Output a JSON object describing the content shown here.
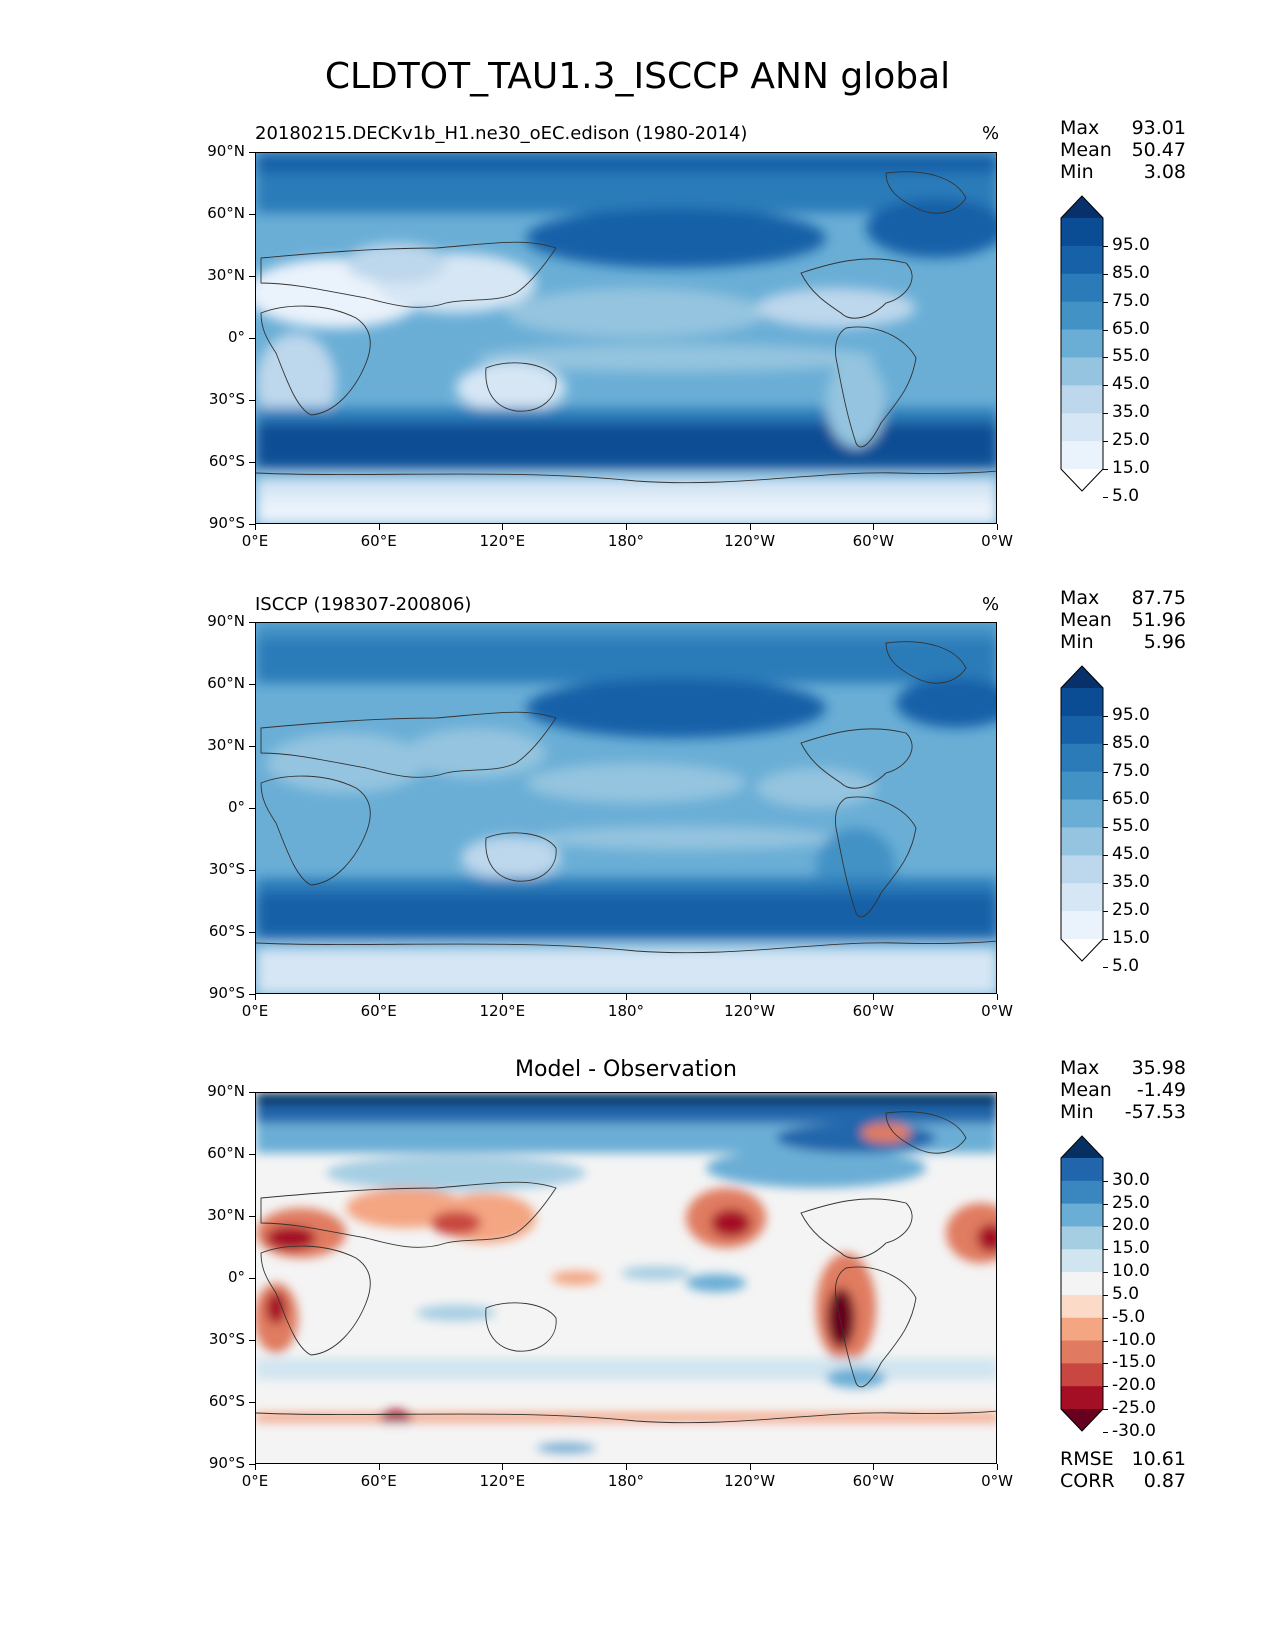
{
  "title": "CLDTOT_TAU1.3_ISCCP ANN global",
  "axes": {
    "lat_labels": [
      "90°N",
      "60°N",
      "30°N",
      "0°",
      "30°S",
      "60°S",
      "90°S"
    ],
    "lon_labels": [
      "0°E",
      "60°E",
      "120°E",
      "180°",
      "120°W",
      "60°W",
      "0°W"
    ]
  },
  "panels": [
    {
      "id": "test",
      "title_left": "20180215.DECKv1b_H1.ne30_oEC.edison (1980-2014)",
      "title_right": "%",
      "stats": [
        {
          "label": "Max",
          "value": "93.01"
        },
        {
          "label": "Mean",
          "value": "50.47"
        },
        {
          "label": "Min",
          "value": "3.08"
        }
      ],
      "colorbar_labels": [
        "95.0",
        "85.0",
        "75.0",
        "65.0",
        "55.0",
        "45.0",
        "35.0",
        "25.0",
        "15.0",
        "5.0"
      ],
      "colorbar_colors": [
        "#08306b",
        "#0b4d94",
        "#1761a8",
        "#2c7bb9",
        "#4292c6",
        "#6aaed6",
        "#94c4df",
        "#bdd7ec",
        "#d6e6f4",
        "#eaf2fb",
        "#ffffff"
      ]
    },
    {
      "id": "reference",
      "title_left": "ISCCP (198307-200806)",
      "title_right": "%",
      "stats": [
        {
          "label": "Max",
          "value": "87.75"
        },
        {
          "label": "Mean",
          "value": "51.96"
        },
        {
          "label": "Min",
          "value": "5.96"
        }
      ],
      "colorbar_labels": [
        "95.0",
        "85.0",
        "75.0",
        "65.0",
        "55.0",
        "45.0",
        "35.0",
        "25.0",
        "15.0",
        "5.0"
      ],
      "colorbar_colors": [
        "#08306b",
        "#0b4d94",
        "#1761a8",
        "#2c7bb9",
        "#4292c6",
        "#6aaed6",
        "#94c4df",
        "#bdd7ec",
        "#d6e6f4",
        "#eaf2fb",
        "#ffffff"
      ]
    },
    {
      "id": "difference",
      "title_center": "Model - Observation",
      "stats": [
        {
          "label": "Max",
          "value": "35.98"
        },
        {
          "label": "Mean",
          "value": "-1.49"
        },
        {
          "label": "Min",
          "value": "-57.53"
        }
      ],
      "colorbar_labels": [
        "30.0",
        "25.0",
        "20.0",
        "15.0",
        "10.0",
        "5.0",
        "-5.0",
        "-10.0",
        "-15.0",
        "-20.0",
        "-25.0",
        "-30.0"
      ],
      "colorbar_colors": [
        "#053061",
        "#2166ac",
        "#3a87c0",
        "#6aaed6",
        "#a6cee3",
        "#d1e5f0",
        "#f4f4f4",
        "#fbdbc7",
        "#f4a582",
        "#e07b61",
        "#c94741",
        "#a50f25",
        "#67001f"
      ],
      "metrics": [
        {
          "label": "RMSE",
          "value": "10.61"
        },
        {
          "label": "CORR",
          "value": "0.87"
        }
      ]
    }
  ]
}
